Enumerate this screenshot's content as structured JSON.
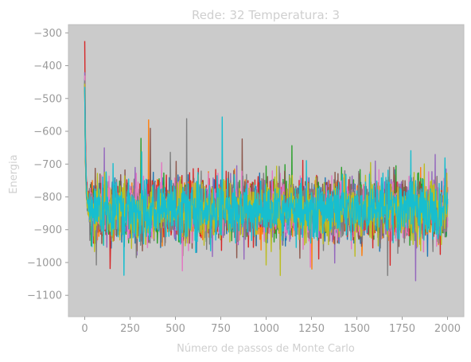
{
  "chart_data": {
    "type": "line",
    "title": "Rede: 32 Temperatura: 3",
    "xlabel": "Número de passos de Monte Carlo",
    "ylabel": "Energia",
    "xlim": [
      -90,
      2090
    ],
    "ylim": [
      -1165,
      -275
    ],
    "xticks": [
      0,
      250,
      500,
      750,
      1000,
      1250,
      1500,
      1750,
      2000
    ],
    "yticks": [
      -300,
      -400,
      -500,
      -600,
      -700,
      -800,
      -900,
      -1000,
      -1100
    ],
    "xtick_labels": [
      "0",
      "250",
      "500",
      "750",
      "1000",
      "1250",
      "1500",
      "1750",
      "2000"
    ],
    "ytick_labels": [
      "−300",
      "−400",
      "−500",
      "−600",
      "−700",
      "−800",
      "−900",
      "−1000",
      "−1100"
    ],
    "plot_background": "#cbcbcb",
    "grid": false,
    "legend": "none",
    "n_steps": 2000,
    "series": [
      {
        "color": "#1f77b4",
        "start": -440,
        "mean": -840,
        "sd": 42
      },
      {
        "color": "#ff7f0e",
        "start": -470,
        "mean": -840,
        "sd": 42
      },
      {
        "color": "#2ca02c",
        "start": -450,
        "mean": -840,
        "sd": 42
      },
      {
        "color": "#d62728",
        "start": -325,
        "mean": -840,
        "sd": 42
      },
      {
        "color": "#9467bd",
        "start": -420,
        "mean": -840,
        "sd": 42
      },
      {
        "color": "#8c564b",
        "start": -460,
        "mean": -840,
        "sd": 42
      },
      {
        "color": "#e377c2",
        "start": -430,
        "mean": -840,
        "sd": 42
      },
      {
        "color": "#7f7f7f",
        "start": -445,
        "mean": -840,
        "sd": 42
      },
      {
        "color": "#bcbd22",
        "start": -455,
        "mean": -840,
        "sd": 42
      },
      {
        "color": "#17becf",
        "start": -465,
        "mean": -840,
        "sd": 42
      }
    ]
  }
}
